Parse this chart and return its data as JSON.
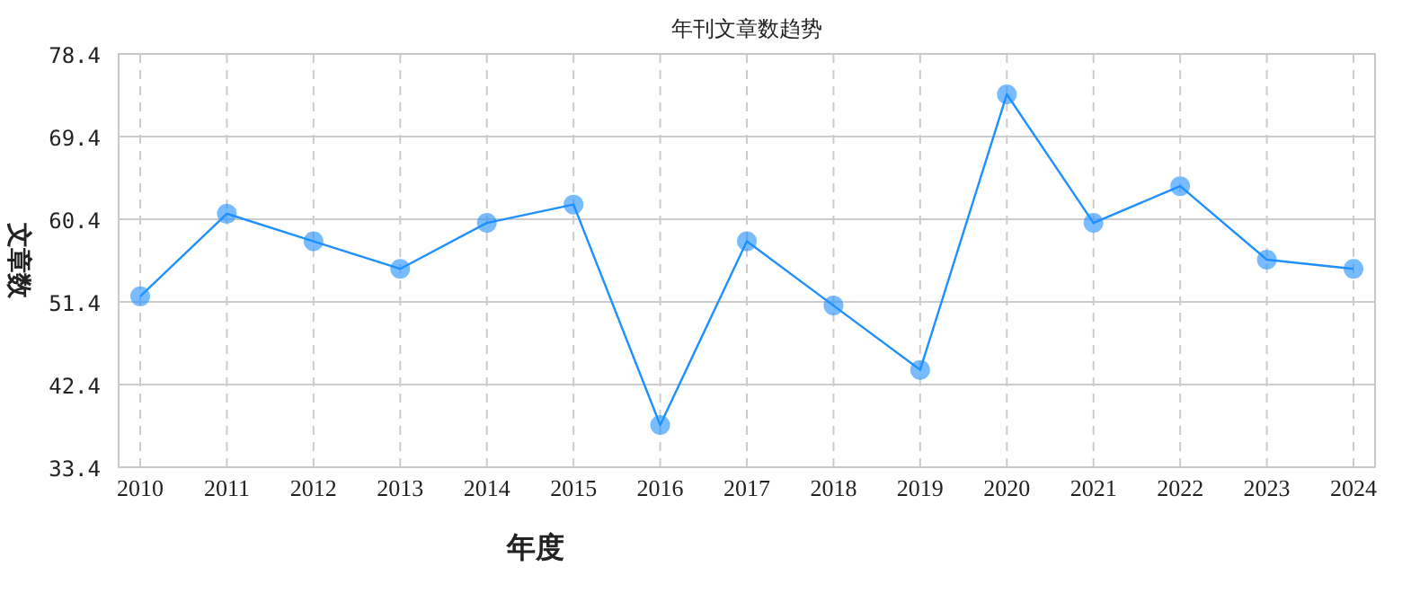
{
  "chart_data": {
    "type": "line",
    "title": "年刊文章数趋势",
    "xlabel": "年度",
    "ylabel": "文章数",
    "categories": [
      "2010",
      "2011",
      "2012",
      "2013",
      "2014",
      "2015",
      "2016",
      "2017",
      "2018",
      "2019",
      "2020",
      "2021",
      "2022",
      "2023",
      "2024"
    ],
    "series": [
      {
        "color": "#1e90ff",
        "values": [
          52,
          61,
          58,
          55,
          60,
          62,
          38,
          58,
          51,
          44,
          74,
          60,
          64,
          56,
          55
        ]
      }
    ],
    "ylim": [
      33.4,
      78.4
    ],
    "yticks": [
      33.4,
      42.4,
      51.4,
      60.4,
      69.4,
      78.4
    ],
    "grid": true,
    "marker": "circle",
    "line_style": "solid"
  }
}
